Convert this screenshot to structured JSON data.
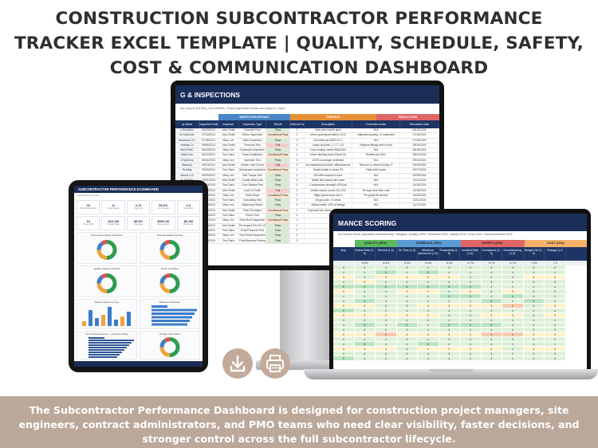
{
  "title": {
    "line1": "CONSTRUCTION SUBCONTRACTOR PERFORMANCE",
    "line2": "TRACKER EXCEL TEMPLATE | QUALITY, SCHEDULE, SAFETY,",
    "line3": "COST & COMMUNICATION DASHBOARD"
  },
  "footer": {
    "line1": "The Subcontractor Performance Dashboard is designed for construction project managers, site",
    "line2": "engineers, contract administrators, and PMO teams who need clear visibility, faster decisions, and",
    "line3": "stronger control across the full subcontractor lifecycle."
  },
  "monitor": {
    "banner": "G & INSPECTIONS",
    "note": "ew reports (NCRs), and defects. Track inspection status and days to close.",
    "groups": [
      "",
      "INSPECTION DETAILS",
      "FINDINGS",
      "RESOLUTION"
    ],
    "columns": [
      "ny Name",
      "Inspection Date",
      "Inspector",
      "Inspection Type",
      "Result",
      "Defects Found",
      "Description",
      "Corrective Action",
      "Resolution Date"
    ],
    "rows": [
      [
        "e Solutions",
        "06/15/2024",
        "John Smith",
        "Concrete Pour",
        "Pass",
        "0",
        "Slab pour meets spec",
        "N/A",
        "06/15/2024"
      ],
      [
        "te Solutions",
        "07/16/2024",
        "John Smith",
        "Rebar Inspection",
        "Conditional Pass",
        "2",
        "Minor spacing deviation in D2",
        "Adjusted spacing, re-inspected",
        "07/16/2024"
      ],
      [
        "structural LLC",
        "07/26/2024",
        "Mary Lee",
        "Weld Inspection",
        "Pass",
        "0",
        "All welds per AWS D1.1",
        "N/A",
        "07/26/2024"
      ],
      [
        "umbing Co",
        "08/05/2024",
        "John Smith",
        "Pressure Test",
        "Fail",
        "3",
        "Leaks at joints L1, L7, L12",
        "Replace fittings and re-test",
        "08/16/2024"
      ],
      [
        "ified HVAC",
        "08/15/2024",
        "Mary Lee",
        "Ductwork Inspection",
        "Pass",
        "0",
        "Duct sealing meets SMACNA",
        "N/A",
        "08/16/2024"
      ],
      [
        "ectrics Inc",
        "08/22/2024",
        "Tom Dans",
        "Panel Installation",
        "Conditional Pass",
        "1",
        "Minor labeling issue Panel 3A",
        "Relabel per NEC",
        "08/24/2024"
      ],
      [
        "e Systems",
        "09/01/2024",
        "Mary Lee",
        "Sprinkler Test",
        "Pass",
        "0",
        "100% coverage confirmed",
        "N/A",
        "09/01/2024"
      ],
      [
        "Masonry",
        "09/10/2024",
        "John Smith",
        "Mortar Joint Check",
        "Fail",
        "3",
        "Inconsistent joint width, efflorescence",
        "Remove & rebuild section 3",
        "09/25/2024"
      ],
      [
        "Roofing",
        "09/20/2024",
        "Tom Dans",
        "Membrane Inspection",
        "Conditional Pass",
        "1",
        "Small bubble in seam R4",
        "Heat weld repair",
        "09/27/2024"
      ],
      [
        "uctural LLC",
        "09/25/2024",
        "Mary Lee",
        "Bolt Torque Test",
        "Pass",
        "0",
        "All bolts torqued to spec",
        "N/A",
        "09/25/2024"
      ],
      [
        "ss Glazing",
        "10/01/2024",
        "John Smith",
        "Curtain Wall Leak",
        "Pass",
        "0",
        "Water test passed all zones",
        "N/A",
        "10/01/2024"
      ],
      [
        "crete",
        "10/16/2024",
        "Tom Dans",
        "Core Sample Test",
        "Pass",
        "0",
        "Compressive strength 4200 psi",
        "N/A",
        "10/16/2024"
      ],
      [
        "Paving",
        "10/16/2024",
        "John Smith",
        "Level & Finish",
        "Fail",
        "4",
        "Visible seams rooms 201-204",
        "Re-tape and skim coat",
        "10/26/2024"
      ],
      [
        "",
        "10/25/2024",
        "Mary Lee",
        "Drain Slope",
        "Conditional Pass",
        "1",
        "Slight grade issue line 2",
        "Re-grade till section",
        "10/28/2024"
      ],
      [
        "",
        "11/01/2024",
        "Tom Dans",
        "Grounding Test",
        "Pass",
        "0",
        "All grounds < 5 ohms",
        "N/A",
        "11/01/2024"
      ],
      [
        "",
        "11/10/2024",
        "Mary Lee",
        "Balancing Report",
        "Pass",
        "0",
        "Airflow within 10% of design",
        "N/A",
        "11/10/2024"
      ],
      [
        "",
        "11/15/2024",
        "John Smith",
        "Final Fire Alarm",
        "Conditional Pass",
        "1",
        "Improved fan close code variation",
        "Accept with documentation",
        "11/15/2024"
      ],
      [
        "",
        "11/20/2024",
        "Tom Dans",
        "Punch Test",
        "Pass",
        "0",
        "",
        "",
        ""
      ],
      [
        "",
        "12/01/2024",
        "Mary Lee",
        "Final Roof Inspection",
        "Conditional Pass",
        "1",
        "",
        "",
        ""
      ],
      [
        "",
        "12/06/2024",
        "John Smith",
        "Re-inspect Rm 201-204",
        "Pass",
        "0",
        "",
        "",
        ""
      ],
      [
        "",
        "12/10/2024",
        "Tom Dans",
        "Final Pressure Test",
        "Pass",
        "0",
        "",
        "",
        ""
      ],
      [
        "",
        "12/15/2024",
        "Mary Lee",
        "Sub-Panel Inspection",
        "Pass",
        "0",
        "",
        "",
        ""
      ],
      [
        "",
        "12/18/2024",
        "Tom Dans",
        "Final Masonry Review",
        "Pass",
        "0",
        "",
        "",
        ""
      ]
    ]
  },
  "tablet": {
    "title": "SUBCONTRACTOR PERFORMANCE DASHBOARD",
    "note": "Subcontractor overview",
    "kpis": [
      {
        "value": "20",
        "label": "Total Subcontractors"
      },
      {
        "value": "11",
        "label": "Active Projects"
      },
      {
        "value": "3.74",
        "label": "Avg Score"
      },
      {
        "value": "96.0%",
        "label": "On-Time Rate"
      },
      {
        "value": "2.0",
        "label": "Avg Defects"
      }
    ],
    "kpis2": [
      {
        "value": "10",
        "label": "Open NCRs"
      },
      {
        "value": "$16.1M",
        "label": "Contract Value"
      },
      {
        "value": "88.9%",
        "label": "Pass Rate"
      },
      {
        "value": "$600.0K",
        "label": "Change Orders"
      },
      {
        "value": "$6.2M",
        "label": "Paid to Date"
      }
    ],
    "panels": [
      "Performance Rating Distribution",
      "Financial Health Overview",
      "Quality Inspection Results",
      "Punch List Status",
      "Safety Incidents by Type",
      "Milestone Distribution",
      "Top 10 Subcontractors — Overall vs Rating",
      "Change Order Status"
    ]
  },
  "laptop": {
    "banner": "MANCE SCORING",
    "note": "ed Overall Score calculated automatically | Weights: Quality=25%, Schedule=25%, Safety=20%, Cost=15%, Communication=15%",
    "groups": [
      {
        "label": "QUALITY (25%)",
        "color": "#5cb85c"
      },
      {
        "label": "SCHEDULE (25%)",
        "color": "#5b9bd5"
      },
      {
        "label": "SAFETY (20%)",
        "color": "#e06666"
      },
      {
        "label": "COST (15%)",
        "color": "#f6b26b"
      }
    ],
    "columns": [
      "ship",
      "Defect Rate (1-5)",
      "Rework (1-5)",
      "On Time (1-5)",
      "Milestone Adherence (1-5)",
      "Productivity (1-5)",
      "Incident Rate (1-5)",
      "Compliance (1-5)",
      "Housekeeping (1-5)",
      "Budget Ctrl (1-5)",
      "Change (1-5"
    ],
    "weights": [
      "",
      "8.3%",
      "8.3%",
      "8.3%",
      "8.3%",
      "8.3%",
      "6.7%",
      "6.7%",
      "6.7%",
      "7.5%",
      "7.5"
    ],
    "rows": [
      [
        "4",
        "4",
        "4",
        "4",
        "4",
        "4",
        "4",
        "4",
        "4",
        "4",
        "4"
      ],
      [
        "4",
        "4",
        "5",
        "4",
        "5",
        "4",
        "4",
        "4",
        "4",
        "4",
        "4"
      ],
      [
        "3",
        "4",
        "3",
        "3",
        "3",
        "3",
        "4",
        "4",
        "4",
        "3",
        "3"
      ],
      [
        "4",
        "3",
        "4",
        "4",
        "4",
        "4",
        "4",
        "4",
        "4",
        "4",
        "4"
      ],
      [
        "5",
        "5",
        "5",
        "5",
        "5",
        "5",
        "5",
        "4",
        "4",
        "4",
        "4"
      ],
      [
        "3",
        "4",
        "4",
        "3",
        "3",
        "4",
        "3",
        "4",
        "3",
        "4",
        "4"
      ],
      [
        "4",
        "4",
        "4",
        "4",
        "4",
        "5",
        "5",
        "4",
        "5",
        "4",
        "4"
      ],
      [
        "4",
        "5",
        "4",
        "4",
        "4",
        "4",
        "4",
        "5",
        "4",
        "5",
        "4"
      ],
      [
        "3",
        "3",
        "4",
        "4",
        "3",
        "3",
        "3",
        "3",
        "2",
        "4",
        "3"
      ],
      [
        "5",
        "4",
        "4",
        "4",
        "4",
        "4",
        "4",
        "4",
        "4",
        "4",
        "4"
      ],
      [
        "3",
        "3",
        "3",
        "3",
        "3",
        "4",
        "4",
        "3",
        "3",
        "4",
        "3"
      ],
      [
        "4",
        "4",
        "4",
        "4",
        "4",
        "4",
        "4",
        "4",
        "4",
        "4",
        "4"
      ],
      [
        "4",
        "5",
        "4",
        "5",
        "4",
        "5",
        "5",
        "5",
        "4",
        "4",
        "4"
      ],
      [
        "4",
        "4",
        "4",
        "4",
        "4",
        "4",
        "4",
        "4",
        "4",
        "4",
        "4"
      ],
      [
        "3",
        "3",
        "2",
        "3",
        "3",
        "3",
        "3",
        "2",
        "2",
        "3",
        "3"
      ],
      [
        "4",
        "4",
        "4",
        "4",
        "4",
        "4",
        "4",
        "4",
        "4",
        "4",
        "4"
      ],
      [
        "4",
        "5",
        "4",
        "4",
        "5",
        "4",
        "4",
        "4",
        "4",
        "4",
        "4"
      ],
      [
        "3",
        "3",
        "3",
        "4",
        "3",
        "3",
        "3",
        "3",
        "4",
        "3",
        "3"
      ],
      [
        "4",
        "4",
        "4",
        "4",
        "4",
        "4",
        "4",
        "4",
        "4",
        "4",
        "4"
      ],
      [
        "5",
        "4",
        "4",
        "4",
        "4",
        "4",
        "4",
        "4",
        "4",
        "4",
        "4"
      ]
    ]
  },
  "colors": {
    "navy": "#1a2e57",
    "footer_bg": "#bca89a",
    "score_5": "#b9e4c0",
    "score_4": "#dff0d8",
    "score_3": "#fff2cc",
    "score_2": "#f8cbad",
    "pass": "#d9ead3",
    "conditional": "#fce5cd",
    "fail": "#f4cccc"
  },
  "icons": [
    "download-icon",
    "printer-icon"
  ]
}
